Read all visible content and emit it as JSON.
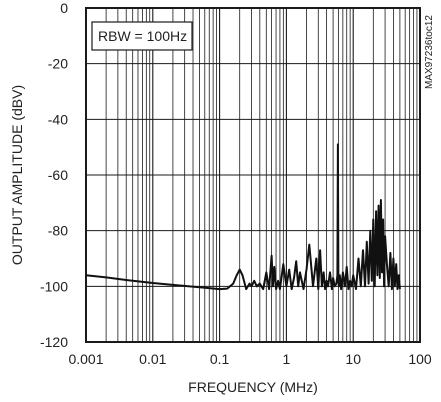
{
  "chart_data": {
    "type": "line",
    "title": "",
    "xlabel": "FREQUENCY (MHz)",
    "ylabel": "OUTPUT AMPLITUDE (dBV)",
    "x_scale": "log",
    "xlim": [
      0.001,
      100
    ],
    "ylim": [
      -120,
      0
    ],
    "grid": true,
    "x_ticks": [
      0.001,
      0.01,
      0.1,
      1,
      10,
      100
    ],
    "x_tick_labels": [
      "0.001",
      "0.01",
      "0.1",
      "1",
      "10",
      "100"
    ],
    "y_ticks": [
      0,
      -20,
      -40,
      -60,
      -80,
      -100,
      -120
    ],
    "y_tick_labels": [
      "0",
      "-20",
      "-40",
      "-60",
      "-80",
      "-100",
      "-120"
    ],
    "annotations": [
      "RBW = 100Hz"
    ],
    "side_code": "MAX97236toc12",
    "series": [
      {
        "x": [
          0.001,
          0.002,
          0.005,
          0.01,
          0.02,
          0.05,
          0.1,
          0.13,
          0.16,
          0.18,
          0.2,
          0.22,
          0.25,
          0.28,
          0.3,
          0.33,
          0.36,
          0.4,
          0.45,
          0.5,
          0.55,
          0.6,
          0.63,
          0.66,
          0.7,
          0.75,
          0.8,
          0.9,
          1.0,
          1.1,
          1.2,
          1.3,
          1.4,
          1.5,
          1.6,
          1.8,
          2.0,
          2.2,
          2.5,
          2.8,
          3.0,
          3.2,
          3.4,
          3.6,
          3.8,
          4.0,
          4.2,
          4.5,
          4.8,
          5.0,
          5.3,
          5.6,
          5.8,
          5.9,
          6.0,
          6.1,
          6.3,
          6.6,
          7.0,
          7.5,
          8.0,
          8.5,
          9.0,
          9.5,
          10,
          11,
          12,
          13,
          14,
          15,
          16,
          17,
          18,
          19,
          20,
          21,
          22,
          23,
          24,
          25,
          26,
          27,
          28,
          29,
          30,
          32,
          34,
          36,
          38,
          40,
          42,
          44,
          46,
          48,
          50
        ],
        "y": [
          -96,
          -96.8,
          -98,
          -98.8,
          -99.5,
          -100.3,
          -101,
          -100.8,
          -99,
          -96,
          -94,
          -96,
          -101,
          -99,
          -100,
          -98,
          -100,
          -99,
          -101,
          -95,
          -101,
          -89,
          -100,
          -93,
          -101,
          -98,
          -101,
          -92,
          -100,
          -94,
          -101,
          -97,
          -91,
          -100,
          -95,
          -101,
          -94,
          -85,
          -100,
          -90,
          -101,
          -87,
          -100,
          -95,
          -101,
          -98,
          -100,
          -95,
          -101,
          -97,
          -100,
          -99,
          -96,
          -49,
          -98,
          -100,
          -96,
          -101,
          -95,
          -100,
          -93,
          -101,
          -98,
          -100,
          -96,
          -101,
          -90,
          -100,
          -87,
          -100,
          -84,
          -99,
          -80,
          -98,
          -76,
          -100,
          -73,
          -96,
          -71,
          -97,
          -69,
          -95,
          -76,
          -100,
          -82,
          -92,
          -100,
          -88,
          -101,
          -90,
          -100,
          -92,
          -101,
          -96,
          -101
        ]
      }
    ]
  }
}
